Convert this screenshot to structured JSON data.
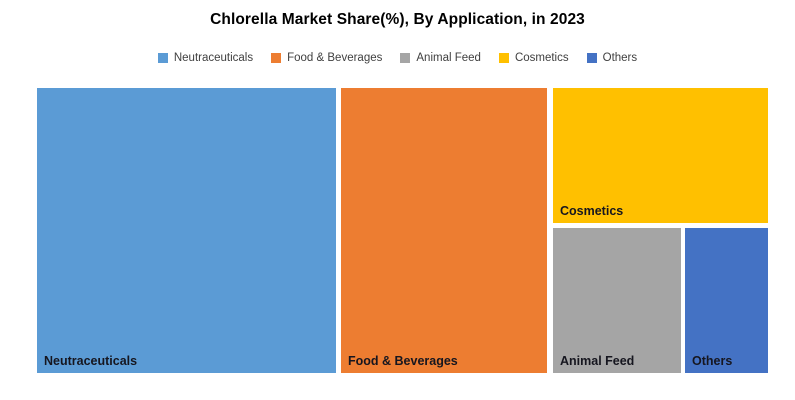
{
  "title": "Chlorella Market Share(%), By Application, in 2023",
  "legend": {
    "items": [
      {
        "label": "Neutraceuticals",
        "color": "#5B9BD5"
      },
      {
        "label": "Food & Beverages",
        "color": "#ED7D31"
      },
      {
        "label": "Animal Feed",
        "color": "#A5A5A5"
      },
      {
        "label": "Cosmetics",
        "color": "#FFC000"
      },
      {
        "label": "Others",
        "color": "#4472C4"
      }
    ]
  },
  "chart_data": {
    "type": "treemap",
    "title": "Chlorella Market Share(%), By Application, in 2023",
    "unit": "%",
    "legend_position": "top",
    "values_estimated_from_block_areas": true,
    "series": [
      {
        "name": "Neutraceuticals",
        "value": 41,
        "color": "#5B9BD5"
      },
      {
        "name": "Food & Beverages",
        "value": 28,
        "color": "#ED7D31"
      },
      {
        "name": "Cosmetics",
        "value": 14,
        "color": "#FFC000"
      },
      {
        "name": "Animal Feed",
        "value": 9,
        "color": "#A5A5A5"
      },
      {
        "name": "Others",
        "value": 6,
        "color": "#4472C4"
      }
    ]
  }
}
